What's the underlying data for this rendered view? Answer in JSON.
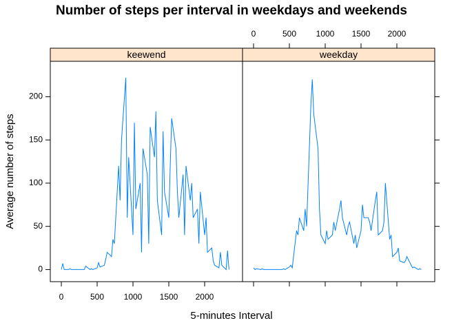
{
  "title": "Number of steps per interval in weekdays and weekends",
  "x_label": "5-minutes Interval",
  "y_label": "Average number of steps",
  "chart_data": [
    {
      "type": "line",
      "panel_label": "keewend",
      "color": "#0080ff",
      "x": [
        0,
        20,
        40,
        100,
        120,
        140,
        200,
        220,
        240,
        300,
        320,
        340,
        400,
        420,
        440,
        500,
        520,
        540,
        600,
        620,
        640,
        700,
        720,
        740,
        800,
        820,
        840,
        900,
        920,
        940,
        1000,
        1020,
        1040,
        1100,
        1120,
        1140,
        1200,
        1220,
        1240,
        1300,
        1320,
        1340,
        1400,
        1420,
        1440,
        1500,
        1520,
        1540,
        1600,
        1620,
        1640,
        1700,
        1720,
        1740,
        1800,
        1820,
        1840,
        1900,
        1920,
        1940,
        2000,
        2020,
        2040,
        2100,
        2120,
        2140,
        2200,
        2220,
        2240,
        2300,
        2320,
        2340
      ],
      "values": [
        0,
        7,
        0,
        0,
        1,
        0,
        0,
        0,
        0,
        0,
        0,
        4,
        0,
        1,
        0,
        2,
        8,
        3,
        5,
        12,
        20,
        15,
        35,
        30,
        120,
        80,
        150,
        222,
        60,
        130,
        40,
        170,
        70,
        100,
        20,
        140,
        110,
        30,
        165,
        130,
        183,
        80,
        40,
        160,
        90,
        60,
        120,
        175,
        140,
        90,
        60,
        110,
        40,
        120,
        80,
        100,
        60,
        70,
        30,
        90,
        40,
        60,
        20,
        25,
        10,
        5,
        2,
        20,
        5,
        0,
        22,
        0
      ],
      "xlim": [
        -154,
        2529
      ],
      "ylim": [
        -14,
        241
      ],
      "xticks": [
        0,
        500,
        1000,
        1500,
        2000
      ],
      "yticks": [
        0,
        50,
        100,
        150,
        200
      ]
    },
    {
      "type": "line",
      "panel_label": "weekday",
      "color": "#0080ff",
      "x": [
        0,
        20,
        40,
        100,
        120,
        140,
        200,
        220,
        240,
        300,
        320,
        340,
        400,
        420,
        440,
        500,
        520,
        540,
        600,
        620,
        640,
        700,
        720,
        740,
        800,
        820,
        840,
        900,
        920,
        940,
        1000,
        1020,
        1040,
        1100,
        1120,
        1140,
        1200,
        1220,
        1240,
        1300,
        1320,
        1340,
        1400,
        1420,
        1440,
        1500,
        1520,
        1540,
        1600,
        1620,
        1640,
        1700,
        1720,
        1740,
        1800,
        1820,
        1840,
        1900,
        1920,
        1940,
        2000,
        2020,
        2040,
        2100,
        2120,
        2140,
        2200,
        2220,
        2240,
        2300,
        2320,
        2340
      ],
      "values": [
        2,
        0,
        1,
        0,
        1,
        0,
        0,
        0,
        0,
        0,
        0,
        0,
        0,
        1,
        0,
        3,
        5,
        2,
        45,
        40,
        60,
        45,
        70,
        50,
        190,
        220,
        180,
        140,
        70,
        40,
        30,
        45,
        35,
        40,
        55,
        45,
        70,
        80,
        60,
        40,
        50,
        55,
        30,
        40,
        25,
        45,
        75,
        60,
        60,
        55,
        45,
        80,
        90,
        40,
        45,
        55,
        100,
        35,
        40,
        15,
        20,
        25,
        10,
        8,
        10,
        15,
        5,
        2,
        3,
        0,
        1,
        0
      ],
      "xlim": [
        -154,
        2529
      ],
      "ylim": [
        -14,
        241
      ],
      "xticks": [
        0,
        500,
        1000,
        1500,
        2000
      ],
      "yticks": [
        0,
        50,
        100,
        150,
        200
      ]
    }
  ]
}
